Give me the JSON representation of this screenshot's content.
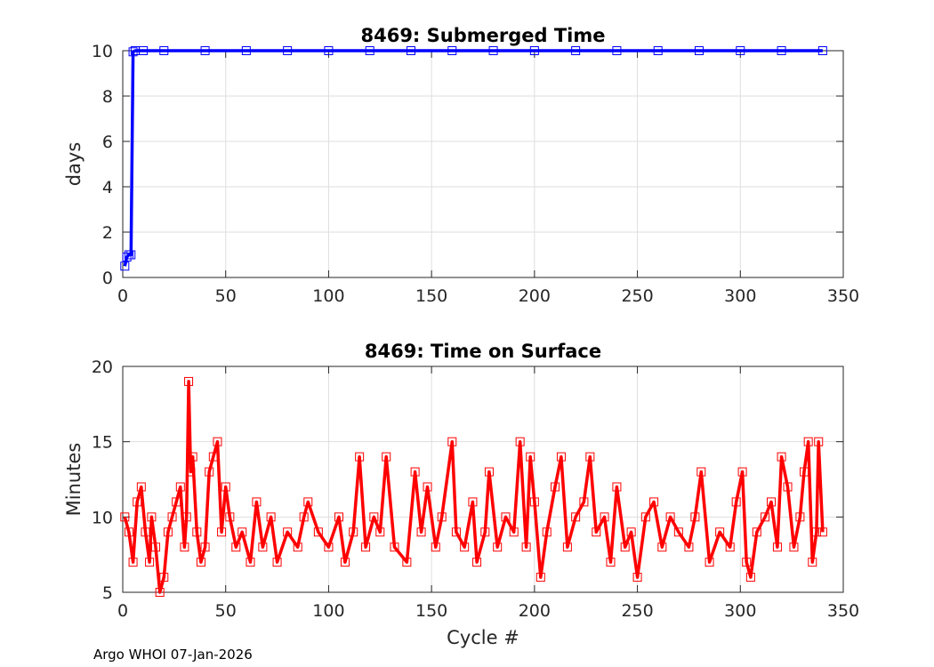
{
  "footer": "Argo WHOI 07-Jan-2026",
  "chart_data": [
    {
      "type": "line",
      "title": "8469: Submerged Time",
      "xlabel": "",
      "ylabel": "days",
      "xlim": [
        0,
        350
      ],
      "ylim": [
        0,
        10
      ],
      "xticks": [
        0,
        50,
        100,
        150,
        200,
        250,
        300,
        350
      ],
      "yticks": [
        0,
        2,
        4,
        6,
        8,
        10
      ],
      "grid": true,
      "color": "#0000ff",
      "marker": "square",
      "series": [
        {
          "x": [
            1,
            2,
            3,
            4,
            5,
            6,
            10,
            20,
            40,
            60,
            80,
            100,
            120,
            140,
            160,
            180,
            200,
            220,
            240,
            260,
            280,
            300,
            320,
            340
          ],
          "y": [
            0.5,
            0.9,
            1.0,
            1.0,
            9.95,
            10.0,
            10.0,
            10.0,
            10.0,
            10.0,
            10.0,
            10.0,
            10.0,
            10.0,
            10.0,
            10.0,
            10.0,
            10.0,
            10.0,
            10.0,
            10.0,
            10.0,
            10.0,
            10.0
          ]
        }
      ]
    },
    {
      "type": "line",
      "title": "8469: Time on Surface",
      "xlabel": "Cycle #",
      "ylabel": "Minutes",
      "xlim": [
        0,
        350
      ],
      "ylim": [
        5,
        20
      ],
      "xticks": [
        0,
        50,
        100,
        150,
        200,
        250,
        300,
        350
      ],
      "yticks": [
        5,
        10,
        15,
        20
      ],
      "grid": true,
      "color": "#ff0000",
      "marker": "square",
      "series": [
        {
          "x": [
            1,
            3,
            5,
            7,
            9,
            11,
            13,
            14,
            16,
            18,
            20,
            22,
            24,
            26,
            28,
            30,
            31,
            32,
            33,
            34,
            36,
            38,
            40,
            42,
            44,
            46,
            48,
            50,
            52,
            55,
            58,
            62,
            65,
            68,
            72,
            75,
            80,
            85,
            88,
            90,
            95,
            100,
            105,
            108,
            112,
            115,
            118,
            122,
            125,
            128,
            132,
            138,
            142,
            145,
            148,
            152,
            155,
            160,
            162,
            166,
            170,
            172,
            176,
            178,
            182,
            186,
            190,
            193,
            196,
            198,
            200,
            203,
            206,
            210,
            213,
            216,
            220,
            224,
            227,
            230,
            234,
            237,
            240,
            244,
            247,
            250,
            254,
            258,
            262,
            266,
            270,
            275,
            278,
            281,
            285,
            290,
            295,
            298,
            301,
            303,
            305,
            308,
            312,
            315,
            318,
            320,
            323,
            326,
            329,
            331,
            333,
            335,
            337,
            338,
            340
          ],
          "y": [
            10,
            9,
            7,
            11,
            12,
            9,
            7,
            10,
            8,
            5,
            6,
            9,
            10,
            11,
            12,
            8,
            10,
            19,
            13,
            14,
            9,
            7,
            8,
            13,
            14,
            15,
            9,
            12,
            10,
            8,
            9,
            7,
            11,
            8,
            10,
            7,
            9,
            8,
            10,
            11,
            9,
            8,
            10,
            7,
            9,
            14,
            8,
            10,
            9,
            14,
            8,
            7,
            13,
            9,
            12,
            8,
            10,
            15,
            9,
            8,
            11,
            7,
            9,
            13,
            8,
            10,
            9,
            15,
            8,
            14,
            11,
            6,
            9,
            12,
            14,
            8,
            10,
            11,
            14,
            9,
            10,
            7,
            12,
            8,
            9,
            6,
            10,
            11,
            8,
            10,
            9,
            8,
            10,
            13,
            7,
            9,
            8,
            11,
            13,
            7,
            6,
            9,
            10,
            11,
            8,
            14,
            12,
            8,
            10,
            13,
            15,
            7,
            9,
            15,
            9
          ]
        }
      ]
    }
  ]
}
